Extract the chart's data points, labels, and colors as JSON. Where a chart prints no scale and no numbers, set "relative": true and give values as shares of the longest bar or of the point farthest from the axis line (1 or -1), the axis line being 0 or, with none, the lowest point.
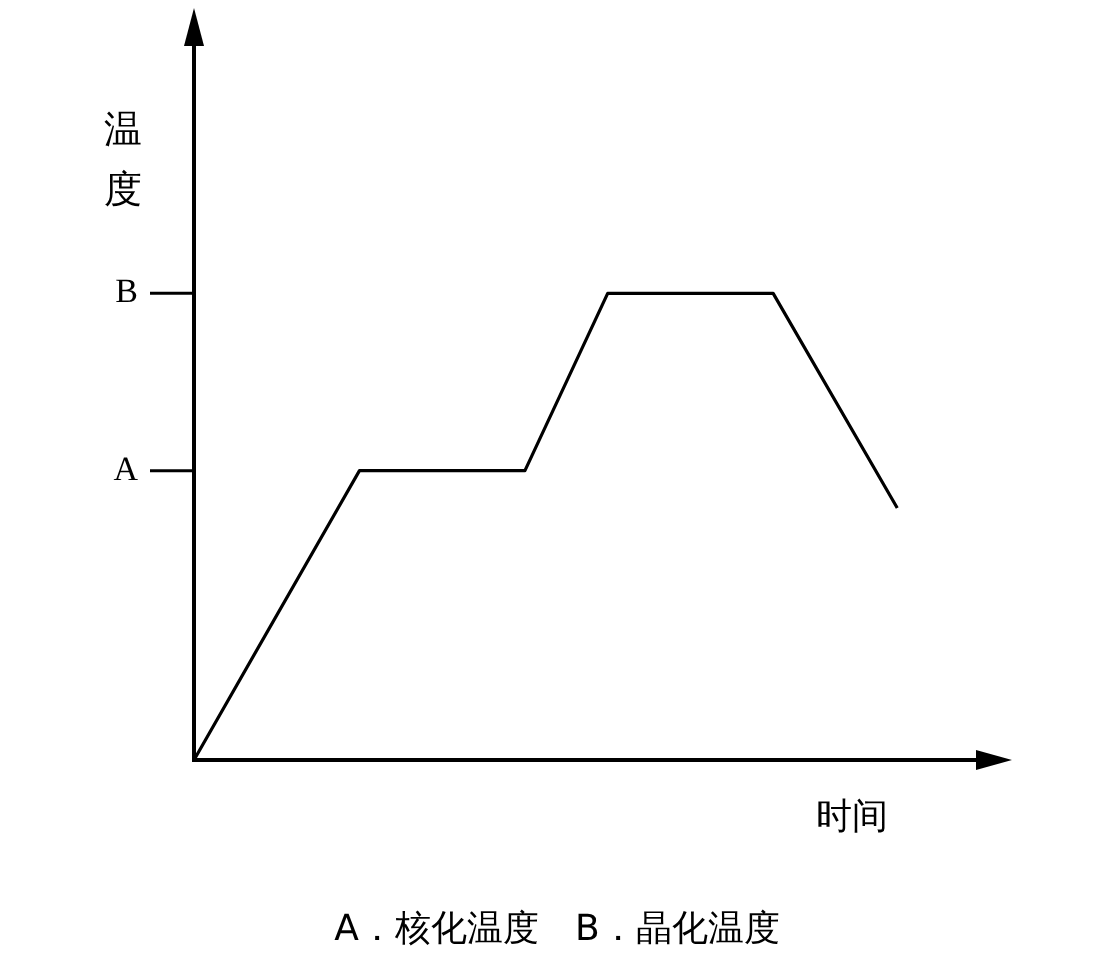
{
  "chart_data": {
    "type": "line",
    "relative": true,
    "xlabel": "时间",
    "ylabel": "温度",
    "annotations": [
      "A．核化温度　B．晶化温度"
    ],
    "ref_lines": [
      {
        "axis": "y",
        "value": 0.62,
        "label": "A"
      },
      {
        "axis": "y",
        "value": 1,
        "label": "B"
      }
    ],
    "categories": [
      null,
      null,
      null,
      null,
      null,
      null,
      null,
      null,
      null,
      null,
      null,
      null,
      null,
      null,
      null,
      null,
      null,
      null,
      null,
      null
    ],
    "series": [
      {
        "color": "#000000",
        "values": [
          0,
          null,
          null,
          null,
          0.62,
          null,
          null,
          null,
          0.62,
          null,
          1,
          null,
          null,
          null,
          1,
          null,
          null,
          0.54,
          null,
          null
        ]
      }
    ],
    "grid": false,
    "legend": false,
    "marker": "none",
    "line_style": "solid"
  }
}
